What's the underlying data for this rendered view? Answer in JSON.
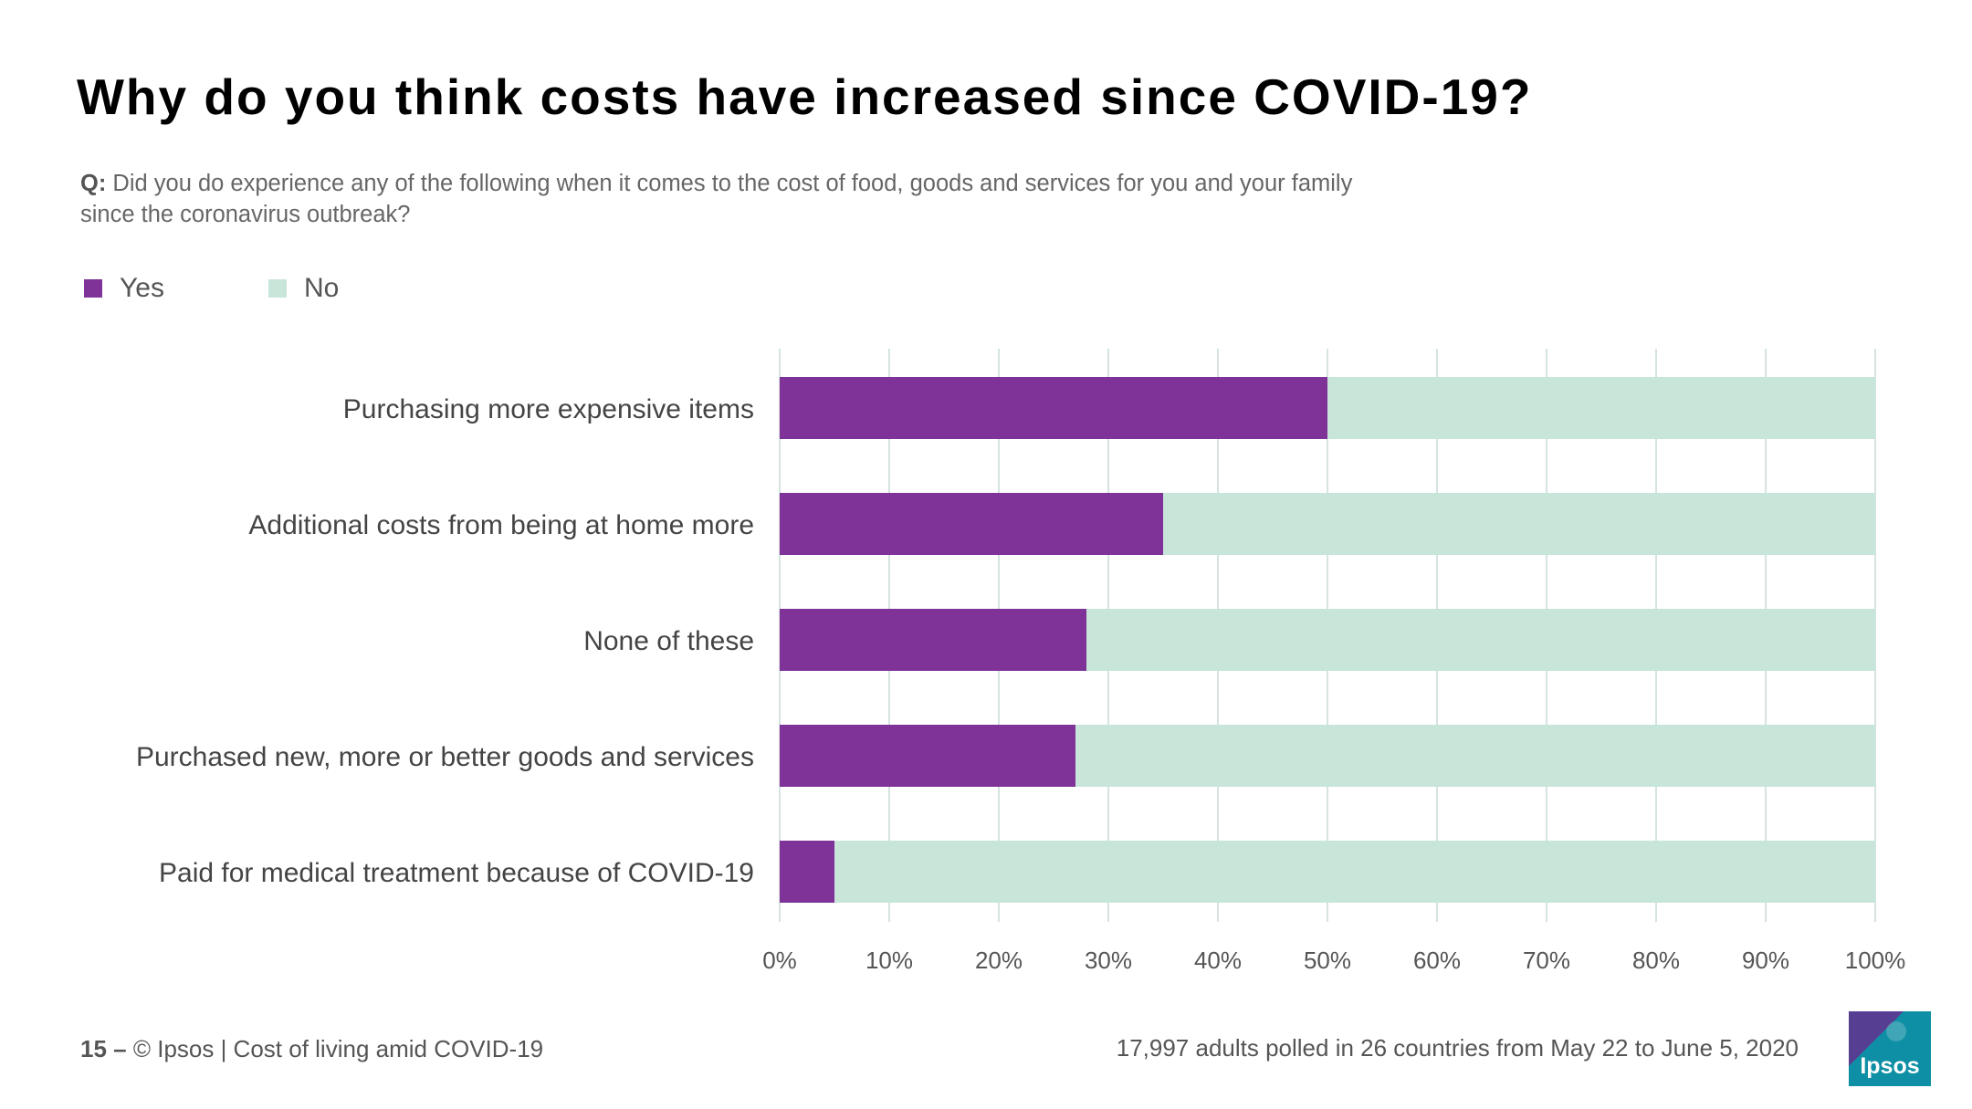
{
  "title": "Why do you think costs have increased since COVID-19?",
  "question": {
    "prefix": "Q:",
    "text": " Did you do experience any of the following when it comes to the cost of food, goods and services for you and your family since the coronavirus outbreak?"
  },
  "legend": [
    {
      "label": "Yes",
      "color": "#7F3298"
    },
    {
      "label": "No",
      "color": "#C8E5DA"
    }
  ],
  "chart_data": {
    "type": "bar",
    "orientation": "horizontal",
    "stacked": true,
    "categories": [
      "Purchasing more expensive items",
      "Additional costs from being at home more",
      "None of these",
      "Purchased new, more or better goods and services",
      "Paid for medical treatment because of COVID-19"
    ],
    "series": [
      {
        "name": "Yes",
        "color": "#7F3298",
        "values": [
          50,
          35,
          28,
          27,
          5
        ]
      },
      {
        "name": "No",
        "color": "#C8E5DA",
        "values": [
          50,
          65,
          72,
          73,
          95
        ]
      }
    ],
    "xlim": [
      0,
      100
    ],
    "xticks": [
      "0%",
      "10%",
      "20%",
      "30%",
      "40%",
      "50%",
      "60%",
      "70%",
      "80%",
      "90%",
      "100%"
    ],
    "grid": true
  },
  "footer": {
    "page": "15 –",
    "source": " © Ipsos | Cost of living amid COVID-19",
    "note": "17,997 adults polled in 26 countries from May 22 to June 5, 2020"
  },
  "logo": {
    "text": "Ipsos",
    "color": "#0F8FA5"
  }
}
